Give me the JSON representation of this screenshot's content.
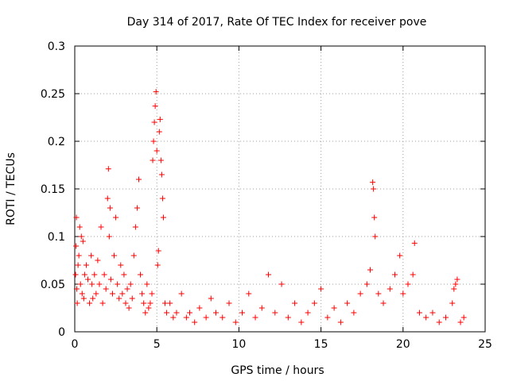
{
  "chart_data": {
    "type": "scatter",
    "title": "Day 314 of 2017, Rate Of TEC Index for receiver pove",
    "xlabel": "GPS time / hours",
    "ylabel": "ROTI / TECUs",
    "xlim": [
      0,
      25
    ],
    "ylim": [
      0,
      0.3
    ],
    "xticks": [
      0,
      5,
      10,
      15,
      20,
      25
    ],
    "xtick_labels": [
      "0",
      "5",
      "10",
      "15",
      "20",
      "25"
    ],
    "yticks": [
      0,
      0.05,
      0.1,
      0.15,
      0.2,
      0.25,
      0.3
    ],
    "ytick_labels": [
      "0",
      "0.05",
      "0.1",
      "0.15",
      "0.2",
      "0.25",
      "0.3"
    ],
    "grid": true,
    "marker": "+",
    "color": "#ff0000",
    "series": [
      {
        "name": "ROTI",
        "points": [
          [
            0.05,
            0.06
          ],
          [
            0.08,
            0.09
          ],
          [
            0.1,
            0.12
          ],
          [
            0.12,
            0.045
          ],
          [
            0.15,
            0.03
          ],
          [
            0.2,
            0.07
          ],
          [
            0.25,
            0.08
          ],
          [
            0.3,
            0.11
          ],
          [
            0.35,
            0.05
          ],
          [
            0.4,
            0.1
          ],
          [
            0.45,
            0.04
          ],
          [
            0.5,
            0.095
          ],
          [
            0.55,
            0.035
          ],
          [
            0.6,
            0.06
          ],
          [
            0.7,
            0.07
          ],
          [
            0.8,
            0.055
          ],
          [
            0.9,
            0.03
          ],
          [
            1.0,
            0.08
          ],
          [
            1.05,
            0.05
          ],
          [
            1.1,
            0.035
          ],
          [
            1.2,
            0.06
          ],
          [
            1.3,
            0.04
          ],
          [
            1.4,
            0.075
          ],
          [
            1.5,
            0.05
          ],
          [
            1.6,
            0.11
          ],
          [
            1.7,
            0.03
          ],
          [
            1.8,
            0.06
          ],
          [
            1.9,
            0.045
          ],
          [
            2.0,
            0.14
          ],
          [
            2.05,
            0.171
          ],
          [
            2.1,
            0.1
          ],
          [
            2.15,
            0.13
          ],
          [
            2.2,
            0.055
          ],
          [
            2.3,
            0.04
          ],
          [
            2.4,
            0.08
          ],
          [
            2.5,
            0.12
          ],
          [
            2.6,
            0.05
          ],
          [
            2.7,
            0.035
          ],
          [
            2.8,
            0.07
          ],
          [
            2.9,
            0.04
          ],
          [
            3.0,
            0.06
          ],
          [
            3.1,
            0.03
          ],
          [
            3.2,
            0.045
          ],
          [
            3.3,
            0.025
          ],
          [
            3.4,
            0.05
          ],
          [
            3.5,
            0.035
          ],
          [
            3.6,
            0.08
          ],
          [
            3.7,
            0.11
          ],
          [
            3.8,
            0.13
          ],
          [
            3.9,
            0.16
          ],
          [
            4.0,
            0.06
          ],
          [
            4.1,
            0.04
          ],
          [
            4.2,
            0.03
          ],
          [
            4.3,
            0.02
          ],
          [
            4.4,
            0.05
          ],
          [
            4.5,
            0.025
          ],
          [
            4.6,
            0.03
          ],
          [
            4.7,
            0.04
          ],
          [
            4.75,
            0.18
          ],
          [
            4.8,
            0.2
          ],
          [
            4.85,
            0.22
          ],
          [
            4.9,
            0.237
          ],
          [
            4.95,
            0.252
          ],
          [
            5.0,
            0.19
          ],
          [
            5.05,
            0.07
          ],
          [
            5.1,
            0.085
          ],
          [
            5.15,
            0.21
          ],
          [
            5.2,
            0.223
          ],
          [
            5.25,
            0.18
          ],
          [
            5.3,
            0.165
          ],
          [
            5.35,
            0.14
          ],
          [
            5.4,
            0.12
          ],
          [
            5.5,
            0.03
          ],
          [
            5.6,
            0.02
          ],
          [
            5.8,
            0.03
          ],
          [
            6.0,
            0.015
          ],
          [
            6.2,
            0.02
          ],
          [
            6.5,
            0.04
          ],
          [
            6.8,
            0.015
          ],
          [
            7.0,
            0.02
          ],
          [
            7.3,
            0.01
          ],
          [
            7.6,
            0.025
          ],
          [
            8.0,
            0.015
          ],
          [
            8.3,
            0.035
          ],
          [
            8.6,
            0.02
          ],
          [
            9.0,
            0.015
          ],
          [
            9.4,
            0.03
          ],
          [
            9.8,
            0.01
          ],
          [
            10.2,
            0.02
          ],
          [
            10.6,
            0.04
          ],
          [
            11.0,
            0.015
          ],
          [
            11.4,
            0.025
          ],
          [
            11.8,
            0.06
          ],
          [
            12.2,
            0.02
          ],
          [
            12.6,
            0.05
          ],
          [
            13.0,
            0.015
          ],
          [
            13.4,
            0.03
          ],
          [
            13.8,
            0.01
          ],
          [
            14.2,
            0.02
          ],
          [
            14.6,
            0.03
          ],
          [
            15.0,
            0.045
          ],
          [
            15.4,
            0.015
          ],
          [
            15.8,
            0.025
          ],
          [
            16.2,
            0.01
          ],
          [
            16.6,
            0.03
          ],
          [
            17.0,
            0.02
          ],
          [
            17.4,
            0.04
          ],
          [
            17.8,
            0.05
          ],
          [
            18.0,
            0.065
          ],
          [
            18.15,
            0.157
          ],
          [
            18.2,
            0.15
          ],
          [
            18.25,
            0.12
          ],
          [
            18.3,
            0.1
          ],
          [
            18.5,
            0.04
          ],
          [
            18.8,
            0.03
          ],
          [
            19.2,
            0.045
          ],
          [
            19.5,
            0.06
          ],
          [
            19.8,
            0.08
          ],
          [
            20.0,
            0.04
          ],
          [
            20.3,
            0.05
          ],
          [
            20.6,
            0.06
          ],
          [
            20.7,
            0.093
          ],
          [
            21.0,
            0.02
          ],
          [
            21.4,
            0.015
          ],
          [
            21.8,
            0.02
          ],
          [
            22.2,
            0.01
          ],
          [
            22.6,
            0.015
          ],
          [
            23.0,
            0.03
          ],
          [
            23.1,
            0.045
          ],
          [
            23.2,
            0.05
          ],
          [
            23.3,
            0.055
          ],
          [
            23.5,
            0.01
          ],
          [
            23.7,
            0.015
          ]
        ]
      }
    ]
  }
}
